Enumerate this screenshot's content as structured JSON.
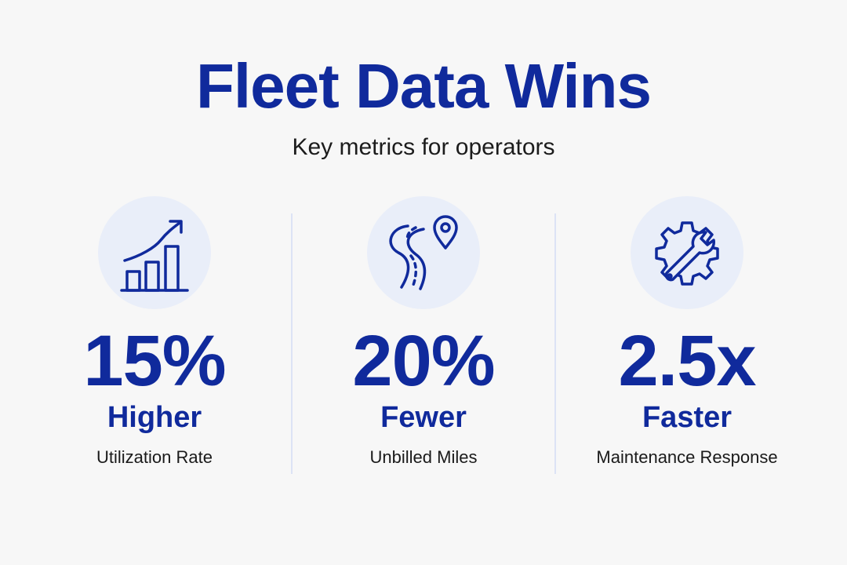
{
  "header": {
    "title": "Fleet Data Wins",
    "subtitle": "Key metrics for operators"
  },
  "colors": {
    "accent": "#102a9c",
    "icon_bg": "#e9eef9",
    "background": "#f7f7f7",
    "divider": "#dce3f5"
  },
  "metrics": [
    {
      "icon": "growth-chart-icon",
      "value": "15%",
      "qualifier": "Higher",
      "label": "Utilization Rate"
    },
    {
      "icon": "route-pin-icon",
      "value": "20%",
      "qualifier": "Fewer",
      "label": "Unbilled Miles"
    },
    {
      "icon": "gear-wrench-icon",
      "value": "2.5x",
      "qualifier": "Faster",
      "label": "Maintenance Response"
    }
  ]
}
